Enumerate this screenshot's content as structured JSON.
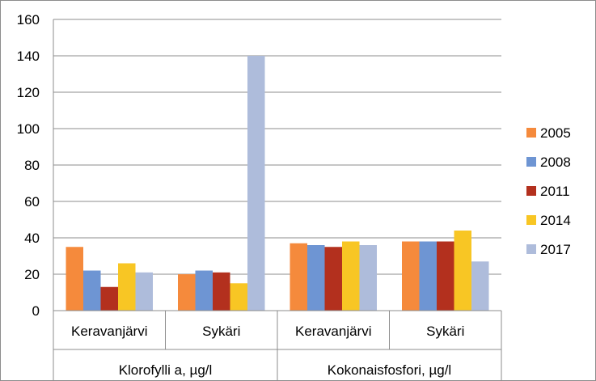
{
  "chart_data": {
    "type": "bar",
    "title": "",
    "xlabel": "",
    "ylabel": "",
    "ylim": [
      0,
      160
    ],
    "yticks": [
      0,
      20,
      40,
      60,
      80,
      100,
      120,
      140,
      160
    ],
    "grid": true,
    "legend_position": "right",
    "groups": [
      {
        "label": "Klorofylli a, µg/l",
        "categories": [
          "Keravanjärvi",
          "Sykäri"
        ]
      },
      {
        "label": "Kokonaisfosfori, µg/l",
        "categories": [
          "Keravanjärvi",
          "Sykäri"
        ]
      }
    ],
    "categories": [
      "Keravanjärvi",
      "Sykäri",
      "Keravanjärvi",
      "Sykäri"
    ],
    "series": [
      {
        "name": "2005",
        "color": "#F58A3C",
        "values": [
          35,
          20,
          37,
          38
        ]
      },
      {
        "name": "2008",
        "color": "#6E95D3",
        "values": [
          22,
          22,
          36,
          38
        ]
      },
      {
        "name": "2011",
        "color": "#B3301E",
        "values": [
          13,
          21,
          35,
          38
        ]
      },
      {
        "name": "2014",
        "color": "#F8C624",
        "values": [
          26,
          15,
          38,
          44
        ]
      },
      {
        "name": "2017",
        "color": "#AEBCDB",
        "values": [
          21,
          140,
          36,
          27
        ]
      }
    ]
  }
}
